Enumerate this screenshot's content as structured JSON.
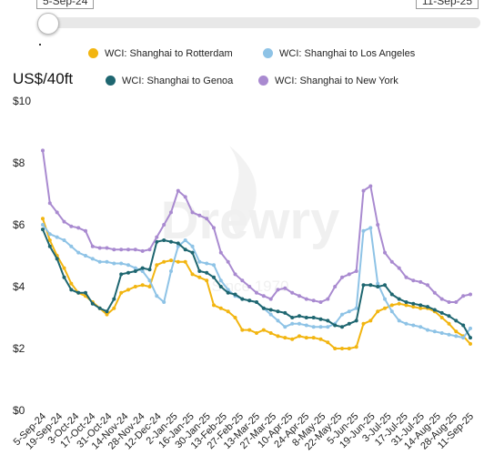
{
  "slider": {
    "start_label": "5-Sep-24",
    "end_label": "11-Sep-25"
  },
  "watermark": {
    "brand": "Drewry",
    "since": "Since 1970"
  },
  "chart_data": {
    "type": "line",
    "title": "",
    "ylabel": "US$/40ft",
    "xlabel": "",
    "ylim": [
      0,
      10
    ],
    "yticks": [
      "$0",
      "$2",
      "$4",
      "$6",
      "$8",
      "$10"
    ],
    "ytick_values": [
      0,
      2,
      4,
      6,
      8,
      10
    ],
    "grid": false,
    "legend_position": "top",
    "x_tick_labels": [
      "5-Sep-24",
      "19-Sep-24",
      "3-Oct-24",
      "17-Oct-24",
      "31-Oct-24",
      "14-Nov-24",
      "28-Nov-24",
      "12-Dec-24",
      "2-Jan-25",
      "16-Jan-25",
      "30-Jan-25",
      "13-Feb-25",
      "27-Feb-25",
      "13-Mar-25",
      "27-Mar-25",
      "10-Apr-25",
      "24-Apr-25",
      "8-May-25",
      "22-May-25",
      "5-Jun-25",
      "19-Jun-25",
      "3-Jul-25",
      "17-Jul-25",
      "31-Jul-25",
      "14-Aug-25",
      "28-Aug-25",
      "11-Sep-25"
    ],
    "series": [
      {
        "name": "WCI: Shanghai to Rotterdam",
        "color": "#f2b510",
        "values": [
          6.2,
          5.5,
          5.0,
          4.6,
          4.1,
          3.8,
          3.7,
          3.5,
          3.3,
          3.1,
          3.3,
          3.8,
          3.9,
          4.0,
          4.05,
          4.0,
          4.7,
          4.8,
          4.85,
          4.8,
          4.8,
          4.4,
          4.3,
          4.2,
          3.4,
          3.3,
          3.2,
          3.0,
          2.6,
          2.6,
          2.5,
          2.6,
          2.5,
          2.4,
          2.35,
          2.3,
          2.4,
          2.35,
          2.35,
          2.3,
          2.2,
          2.0,
          2.0,
          2.0,
          2.05,
          2.8,
          2.9,
          3.2,
          3.3,
          3.4,
          3.45,
          3.4,
          3.35,
          3.3,
          3.3,
          3.2,
          3.0,
          2.8,
          2.55,
          2.4,
          2.15
        ]
      },
      {
        "name": "WCI: Shanghai to Los Angeles",
        "color": "#8ec3e6",
        "values": [
          6.0,
          5.7,
          5.6,
          5.5,
          5.3,
          5.1,
          5.0,
          4.9,
          4.8,
          4.8,
          4.75,
          4.75,
          4.7,
          4.6,
          4.5,
          4.2,
          3.7,
          3.5,
          4.5,
          5.3,
          5.5,
          5.3,
          4.8,
          4.75,
          4.7,
          4.2,
          3.9,
          3.7,
          3.6,
          3.55,
          3.5,
          3.3,
          3.1,
          2.9,
          2.7,
          2.8,
          2.8,
          2.75,
          2.7,
          2.7,
          2.7,
          2.8,
          3.1,
          3.2,
          3.3,
          5.8,
          5.9,
          4.1,
          3.6,
          3.2,
          2.9,
          2.8,
          2.75,
          2.7,
          2.6,
          2.55,
          2.5,
          2.45,
          2.4,
          2.35,
          2.65
        ]
      },
      {
        "name": "WCI: Shanghai to Genoa",
        "color": "#1e6670",
        "values": [
          5.85,
          5.3,
          4.9,
          4.3,
          3.9,
          3.8,
          3.8,
          3.45,
          3.3,
          3.2,
          3.6,
          4.4,
          4.45,
          4.5,
          4.6,
          4.55,
          5.45,
          5.5,
          5.45,
          5.4,
          5.2,
          5.1,
          4.5,
          4.45,
          4.3,
          4.0,
          3.8,
          3.75,
          3.6,
          3.55,
          3.5,
          3.3,
          3.25,
          3.2,
          3.15,
          3.0,
          3.05,
          3.0,
          3.0,
          2.95,
          2.9,
          2.75,
          2.7,
          2.8,
          2.9,
          4.05,
          4.05,
          4.0,
          4.05,
          3.75,
          3.6,
          3.5,
          3.45,
          3.4,
          3.35,
          3.25,
          3.15,
          3.05,
          2.9,
          2.75,
          2.35
        ]
      },
      {
        "name": "WCI: Shanghai to New York",
        "color": "#a98ad0",
        "values": [
          8.4,
          6.7,
          6.4,
          6.1,
          5.95,
          5.9,
          5.8,
          5.3,
          5.25,
          5.25,
          5.2,
          5.2,
          5.2,
          5.2,
          5.15,
          5.2,
          5.6,
          6.0,
          6.4,
          7.1,
          6.9,
          6.4,
          6.3,
          6.2,
          5.9,
          5.1,
          4.8,
          4.4,
          4.2,
          4.0,
          3.8,
          3.7,
          3.6,
          3.9,
          3.95,
          3.8,
          3.7,
          3.6,
          3.55,
          3.5,
          3.6,
          4.0,
          4.3,
          4.4,
          4.5,
          7.1,
          7.25,
          6.0,
          5.1,
          4.8,
          4.6,
          4.3,
          4.2,
          4.15,
          4.05,
          3.8,
          3.6,
          3.5,
          3.5,
          3.7,
          3.75
        ]
      }
    ]
  }
}
